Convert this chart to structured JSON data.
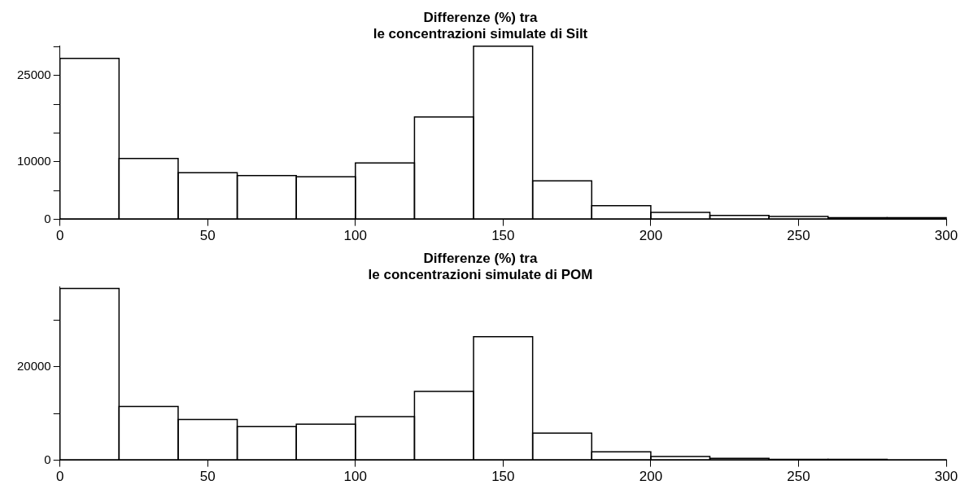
{
  "chart_data": [
    {
      "type": "histogram",
      "title": "Differenze (%) tra\nle concentrazioni simulate di Silt",
      "color": "#000000",
      "grid": false,
      "bins": [
        0,
        20,
        40,
        60,
        80,
        100,
        120,
        140,
        160,
        180,
        200,
        220,
        240,
        260,
        280,
        300
      ],
      "values": [
        28000,
        10600,
        8100,
        7600,
        7400,
        9800,
        17800,
        30100,
        6700,
        2400,
        1200,
        700,
        500,
        300,
        300
      ],
      "xlim": [
        0,
        300
      ],
      "xticks": [
        0,
        50,
        100,
        150,
        200,
        250,
        300
      ],
      "ylim": [
        0,
        30100
      ],
      "yticks": [
        0,
        {
          "value": 5000,
          "label": null
        },
        10000,
        {
          "value": 15000,
          "label": null
        },
        {
          "value": 20000,
          "label": null
        },
        25000,
        {
          "value": 30000,
          "label": null
        }
      ]
    },
    {
      "type": "histogram",
      "title": "Differenze (%) tra\nle concentrazioni simulate di POM",
      "color": "#000000",
      "grid": false,
      "bins": [
        0,
        20,
        40,
        60,
        80,
        100,
        120,
        140,
        160,
        180,
        200,
        220,
        240,
        260,
        280,
        300
      ],
      "values": [
        36700,
        11500,
        8700,
        7200,
        7700,
        9300,
        14700,
        26400,
        5800,
        1800,
        800,
        400,
        200,
        200,
        100
      ],
      "xlim": [
        0,
        300
      ],
      "xticks": [
        0,
        50,
        100,
        150,
        200,
        250,
        300
      ],
      "ylim": [
        0,
        37000
      ],
      "yticks": [
        0,
        {
          "value": 10000,
          "label": null
        },
        20000,
        {
          "value": 30000,
          "label": null
        }
      ]
    }
  ]
}
